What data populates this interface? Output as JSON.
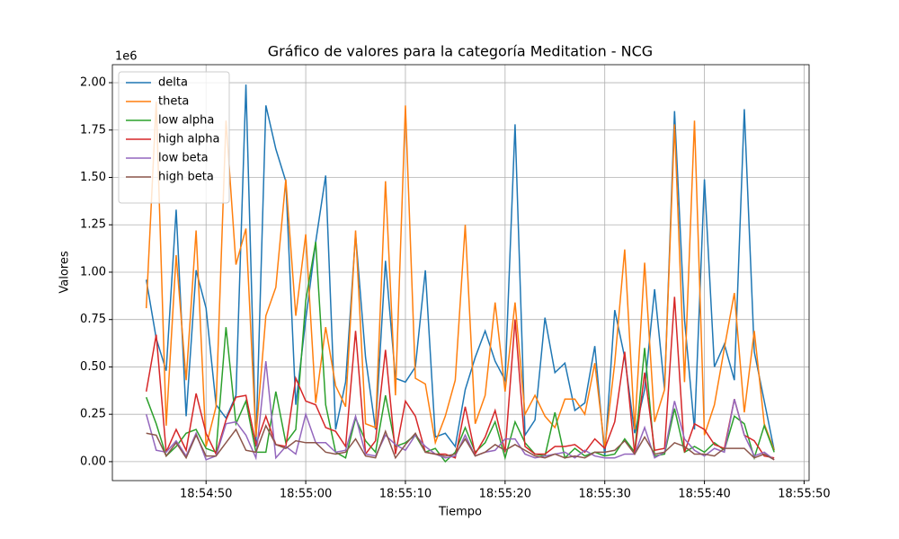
{
  "chart_data": {
    "type": "line",
    "title": "Gráfico de valores para la categoría Meditation - NCG",
    "xlabel": "Tiempo",
    "ylabel": "Valores",
    "y_offset_label": "1e6",
    "x": [
      "18:54:44",
      "18:54:45",
      "18:54:46",
      "18:54:47",
      "18:54:48",
      "18:54:49",
      "18:54:50",
      "18:54:51",
      "18:54:52",
      "18:54:53",
      "18:54:54",
      "18:54:55",
      "18:54:56",
      "18:54:57",
      "18:54:58",
      "18:54:59",
      "18:55:00",
      "18:55:01",
      "18:55:02",
      "18:55:03",
      "18:55:04",
      "18:55:05",
      "18:55:06",
      "18:55:07",
      "18:55:08",
      "18:55:09",
      "18:55:10",
      "18:55:11",
      "18:55:12",
      "18:55:13",
      "18:55:14",
      "18:55:15",
      "18:55:16",
      "18:55:17",
      "18:55:18",
      "18:55:19",
      "18:55:20",
      "18:55:21",
      "18:55:22",
      "18:55:23",
      "18:55:24",
      "18:55:25",
      "18:55:26",
      "18:55:27",
      "18:55:28",
      "18:55:29",
      "18:55:30",
      "18:55:31",
      "18:55:32",
      "18:55:33",
      "18:55:34",
      "18:55:35",
      "18:55:36",
      "18:55:37",
      "18:55:38",
      "18:55:39",
      "18:55:40",
      "18:55:41",
      "18:55:42",
      "18:55:43",
      "18:55:44",
      "18:55:45",
      "18:55:46",
      "18:55:47"
    ],
    "series": [
      {
        "name": "delta",
        "color": "#1f77b4",
        "values": [
          0.96,
          0.65,
          0.48,
          1.33,
          0.24,
          1.01,
          0.81,
          0.3,
          0.23,
          0.35,
          1.99,
          0.08,
          1.88,
          1.65,
          1.48,
          0.3,
          0.75,
          1.16,
          1.51,
          0.17,
          0.42,
          1.2,
          0.55,
          0.17,
          1.06,
          0.44,
          0.42,
          0.5,
          1.01,
          0.13,
          0.15,
          0.08,
          0.38,
          0.55,
          0.69,
          0.53,
          0.43,
          1.78,
          0.14,
          0.22,
          0.76,
          0.47,
          0.52,
          0.27,
          0.31,
          0.61,
          0.03,
          0.8,
          0.55,
          0.15,
          0.38,
          0.91,
          0.38,
          1.85,
          0.75,
          0.17,
          1.49,
          0.5,
          0.62,
          0.43,
          1.86,
          0.58,
          0.32,
          0.06
        ]
      },
      {
        "name": "theta",
        "color": "#ff7f0e",
        "values": [
          0.81,
          1.9,
          0.19,
          1.09,
          0.43,
          1.22,
          0.08,
          0.29,
          1.8,
          1.04,
          1.23,
          0.13,
          0.77,
          0.92,
          1.49,
          0.77,
          1.2,
          0.31,
          0.71,
          0.4,
          0.29,
          1.22,
          0.2,
          0.18,
          1.48,
          0.35,
          1.88,
          0.44,
          0.41,
          0.1,
          0.24,
          0.43,
          1.25,
          0.2,
          0.35,
          0.84,
          0.37,
          0.84,
          0.25,
          0.35,
          0.24,
          0.18,
          0.33,
          0.33,
          0.25,
          0.52,
          0.07,
          0.52,
          1.12,
          0.17,
          1.05,
          0.21,
          0.38,
          1.78,
          0.42,
          1.8,
          0.14,
          0.3,
          0.6,
          0.89,
          0.26,
          0.69,
          0.2,
          0.06
        ]
      },
      {
        "name": "low alpha",
        "color": "#2ca02c",
        "values": [
          0.34,
          0.2,
          0.03,
          0.08,
          0.15,
          0.17,
          0.07,
          0.05,
          0.71,
          0.2,
          0.32,
          0.05,
          0.05,
          0.37,
          0.1,
          0.17,
          0.85,
          1.16,
          0.3,
          0.05,
          0.02,
          0.23,
          0.11,
          0.05,
          0.35,
          0.08,
          0.1,
          0.14,
          0.05,
          0.07,
          0.0,
          0.05,
          0.18,
          0.05,
          0.1,
          0.21,
          0.02,
          0.21,
          0.1,
          0.04,
          0.03,
          0.26,
          0.02,
          0.07,
          0.03,
          0.05,
          0.03,
          0.04,
          0.12,
          0.05,
          0.6,
          0.03,
          0.04,
          0.28,
          0.05,
          0.08,
          0.05,
          0.1,
          0.06,
          0.24,
          0.2,
          0.02,
          0.19,
          0.05
        ]
      },
      {
        "name": "high alpha",
        "color": "#d62728",
        "values": [
          0.37,
          0.67,
          0.05,
          0.17,
          0.06,
          0.36,
          0.15,
          0.04,
          0.22,
          0.34,
          0.35,
          0.09,
          0.24,
          0.09,
          0.08,
          0.44,
          0.32,
          0.3,
          0.18,
          0.16,
          0.08,
          0.69,
          0.04,
          0.11,
          0.59,
          0.04,
          0.32,
          0.24,
          0.05,
          0.04,
          0.04,
          0.02,
          0.29,
          0.04,
          0.13,
          0.27,
          0.05,
          0.75,
          0.08,
          0.04,
          0.04,
          0.08,
          0.08,
          0.09,
          0.05,
          0.12,
          0.07,
          0.21,
          0.58,
          0.04,
          0.47,
          0.06,
          0.07,
          0.87,
          0.05,
          0.2,
          0.17,
          0.09,
          0.07,
          0.33,
          0.14,
          0.11,
          0.03,
          0.02
        ]
      },
      {
        "name": "low beta",
        "color": "#9467bd",
        "values": [
          0.25,
          0.06,
          0.05,
          0.11,
          0.03,
          0.15,
          0.01,
          0.03,
          0.2,
          0.21,
          0.14,
          0.02,
          0.53,
          0.02,
          0.08,
          0.04,
          0.25,
          0.1,
          0.1,
          0.05,
          0.06,
          0.24,
          0.04,
          0.03,
          0.14,
          0.09,
          0.06,
          0.14,
          0.08,
          0.04,
          0.02,
          0.03,
          0.14,
          0.03,
          0.05,
          0.06,
          0.12,
          0.12,
          0.04,
          0.02,
          0.03,
          0.04,
          0.05,
          0.02,
          0.06,
          0.03,
          0.02,
          0.02,
          0.04,
          0.04,
          0.18,
          0.02,
          0.05,
          0.32,
          0.12,
          0.06,
          0.03,
          0.07,
          0.05,
          0.33,
          0.14,
          0.03,
          0.05,
          0.01
        ]
      },
      {
        "name": "high beta",
        "color": "#8c564b",
        "values": [
          0.15,
          0.14,
          0.03,
          0.1,
          0.02,
          0.14,
          0.03,
          0.03,
          0.1,
          0.17,
          0.06,
          0.05,
          0.19,
          0.09,
          0.07,
          0.11,
          0.1,
          0.1,
          0.05,
          0.04,
          0.05,
          0.12,
          0.03,
          0.02,
          0.16,
          0.02,
          0.09,
          0.15,
          0.05,
          0.04,
          0.03,
          0.04,
          0.12,
          0.03,
          0.05,
          0.09,
          0.06,
          0.09,
          0.06,
          0.03,
          0.02,
          0.04,
          0.02,
          0.03,
          0.02,
          0.05,
          0.05,
          0.06,
          0.11,
          0.04,
          0.13,
          0.04,
          0.05,
          0.1,
          0.08,
          0.04,
          0.04,
          0.03,
          0.07,
          0.07,
          0.07,
          0.02,
          0.04,
          0.01
        ]
      }
    ],
    "xlim": [
      "18:54:40.6",
      "18:55:50.5"
    ],
    "xticks": [
      "18:54:50",
      "18:55:00",
      "18:55:10",
      "18:55:20",
      "18:55:30",
      "18:55:40",
      "18:55:50"
    ],
    "ylim": [
      -0.1,
      2.095
    ],
    "yticks": [
      {
        "value": 0,
        "label": "0.00"
      },
      {
        "value": 0.25,
        "label": "0.25"
      },
      {
        "value": 0.5,
        "label": "0.50"
      },
      {
        "value": 0.75,
        "label": "0.75"
      },
      {
        "value": 1,
        "label": "1.00"
      },
      {
        "value": 1.25,
        "label": "1.25"
      },
      {
        "value": 1.5,
        "label": "1.50"
      },
      {
        "value": 1.75,
        "label": "1.75"
      },
      {
        "value": 2,
        "label": "2.00"
      }
    ],
    "grid": true,
    "legend": "upper left"
  }
}
